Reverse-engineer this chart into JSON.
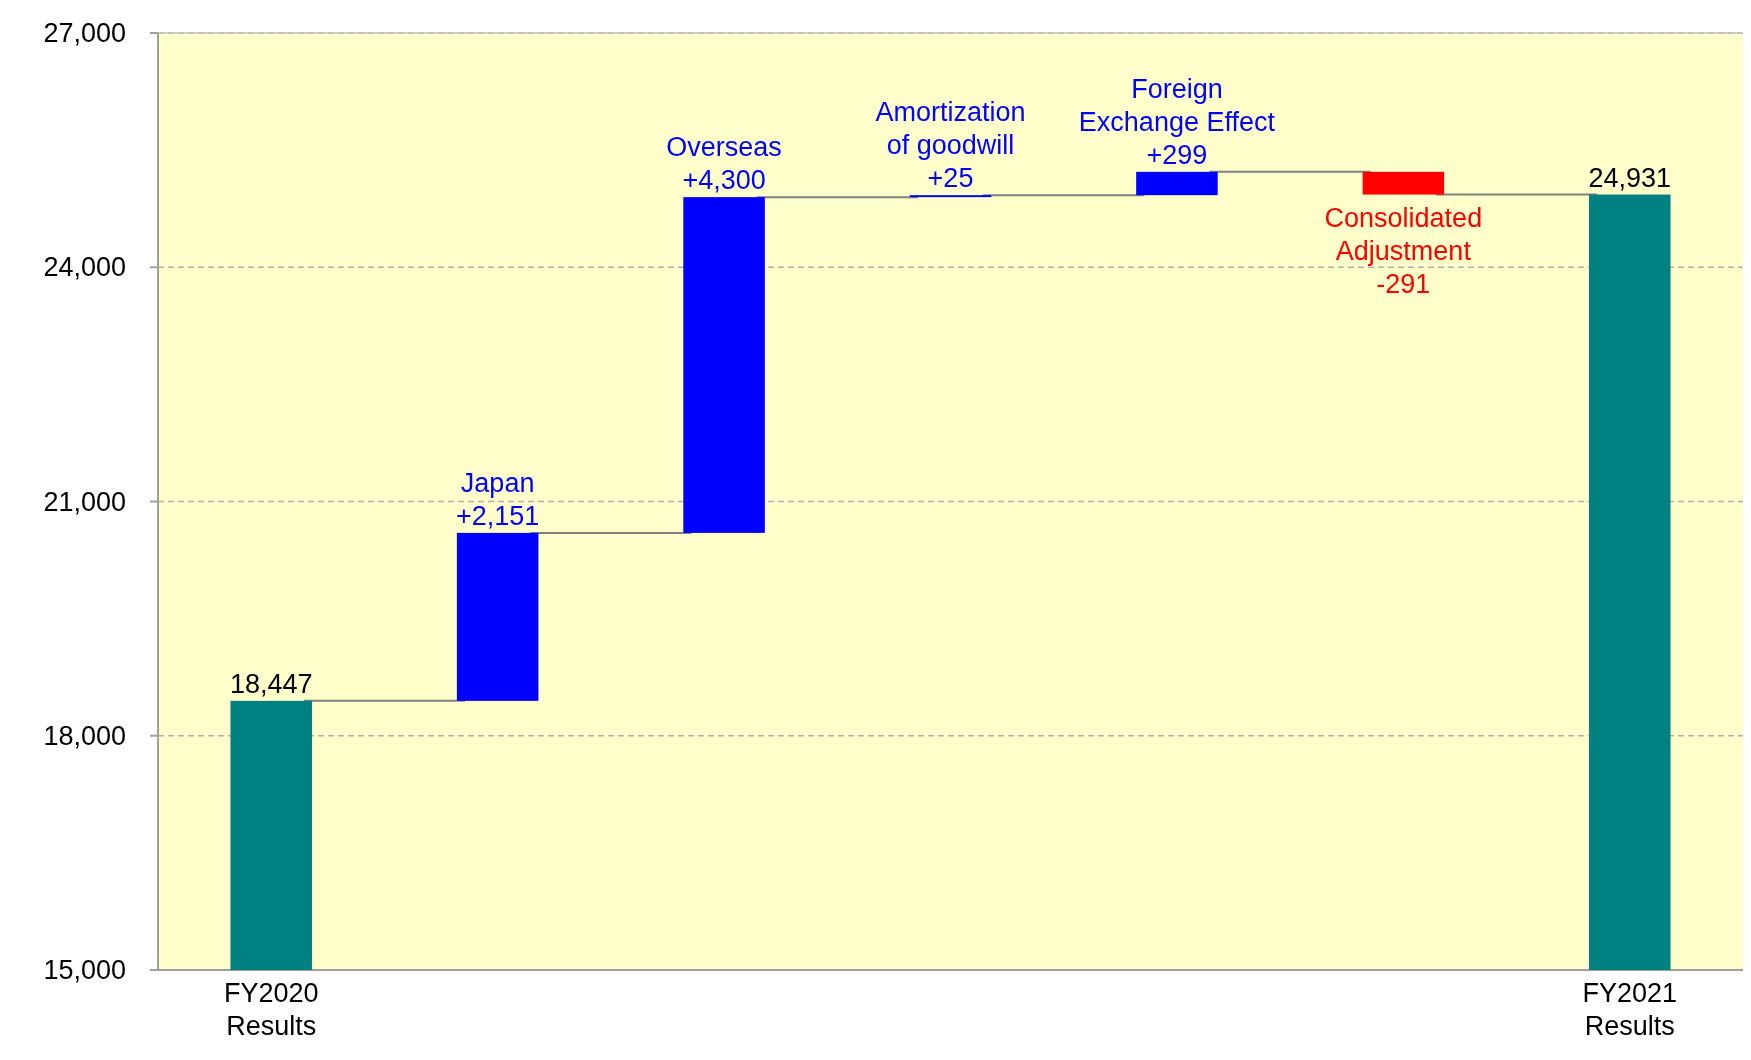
{
  "chart_data": {
    "type": "bar",
    "categories": [
      "FY2020\nResults",
      null,
      null,
      null,
      null,
      null,
      "FY2021\nResults"
    ],
    "base": [
      15000,
      18447,
      20598,
      24898,
      24923,
      25222,
      15000
    ],
    "values": [
      3447,
      2151,
      4300,
      25,
      299,
      -291,
      9931
    ],
    "colors": [
      "#008080",
      "#0000ff",
      "#0000ff",
      "#0000ff",
      "#0000ff",
      "#ff0000",
      "#008080"
    ],
    "value_labels": [
      "18,447",
      "+2,151",
      "+4,300",
      "+25",
      "+299",
      "-291",
      "24,931"
    ],
    "annotations": [
      {
        "text": "Japan",
        "y": 20598
      },
      {
        "text": "Overseas",
        "y": 24898
      },
      {
        "text": "Amortization\nof goodwill",
        "y": 24923
      },
      {
        "text": "Foreign\nExchange Effect",
        "y": 25222
      },
      {
        "text": "Consolidated\nAdjustment",
        "y": 24931
      }
    ],
    "ylim": [
      15000,
      27000
    ],
    "yticks": [
      {
        "value": 15000,
        "label": "15,000"
      },
      {
        "value": 18000,
        "label": "18,000"
      },
      {
        "value": 21000,
        "label": "21,000"
      },
      {
        "value": 24000,
        "label": "24,000"
      },
      {
        "value": 27000,
        "label": "27,000"
      }
    ],
    "grid": "y"
  }
}
